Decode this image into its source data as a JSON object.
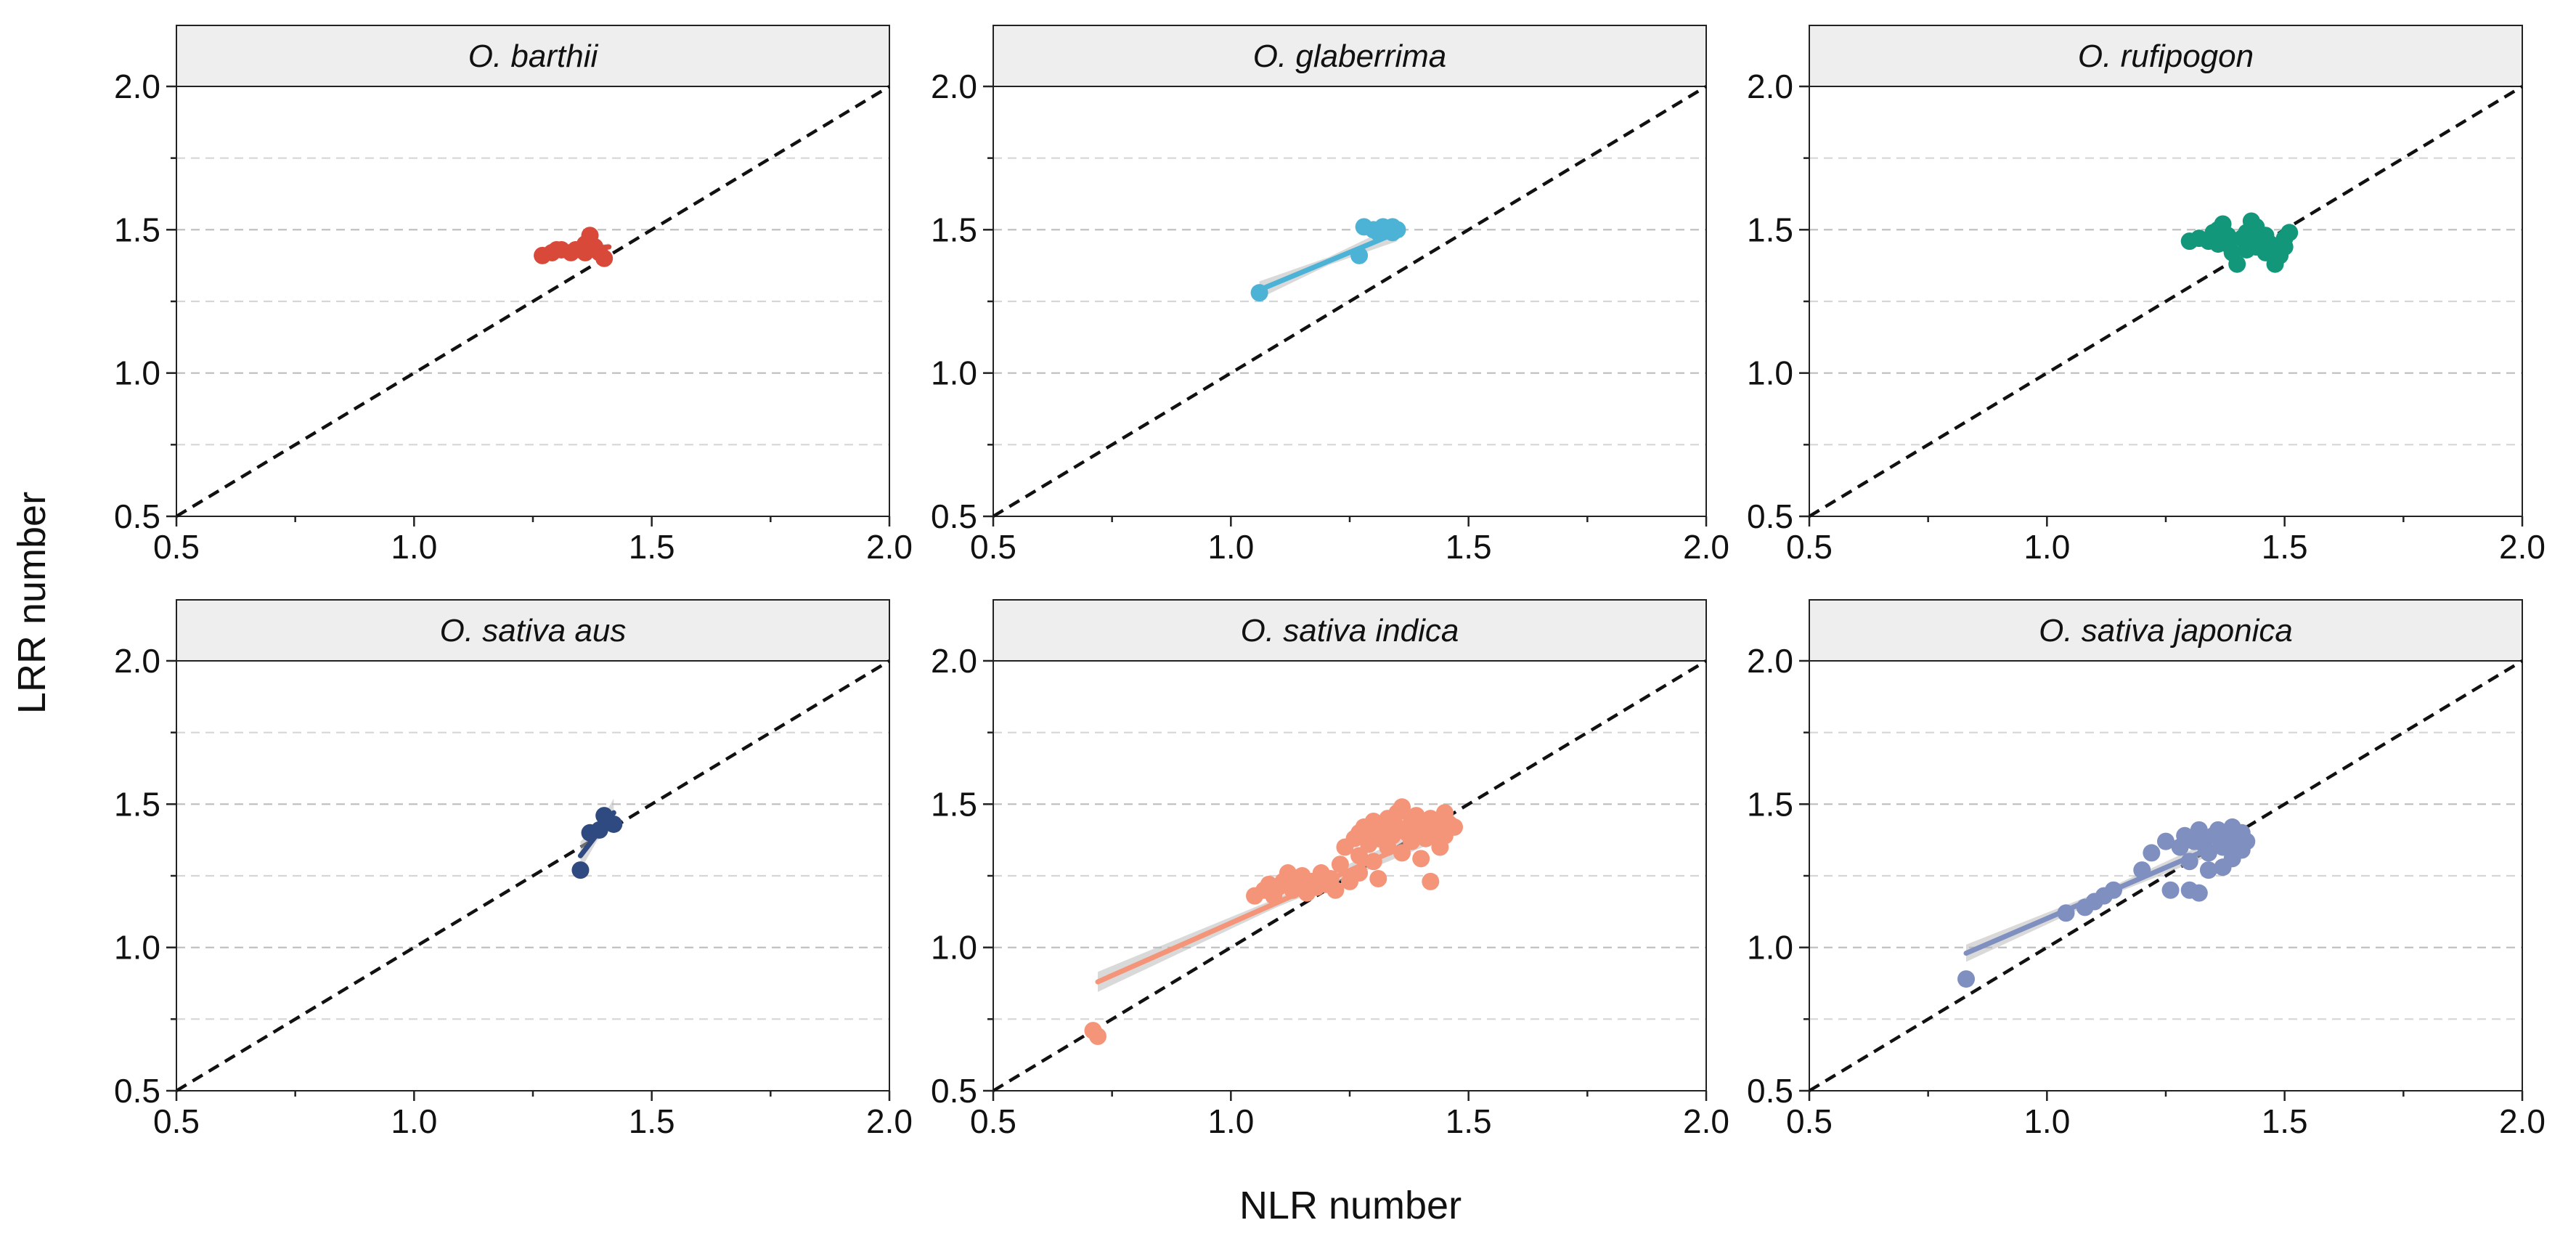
{
  "chart_data": {
    "type": "scatter",
    "figure_title": "",
    "xlabel": "NLR number",
    "ylabel": "LRR number",
    "xlim": [
      0.5,
      2.0
    ],
    "ylim": [
      0.5,
      2.0
    ],
    "x_ticks": [
      "0.5",
      "1.0",
      "1.5",
      "2.0"
    ],
    "y_ticks": [
      "0.5",
      "1.0",
      "1.5",
      "2.0"
    ],
    "grid": "horizontal dashed at 0.75, 1.0, 1.25, 1.5, 1.75",
    "reference_line": "y = x (dashed black)",
    "panels": [
      {
        "title": "O. barthii",
        "color": "#d9493a",
        "points": [
          [
            1.27,
            1.41
          ],
          [
            1.29,
            1.42
          ],
          [
            1.31,
            1.43
          ],
          [
            1.33,
            1.42
          ],
          [
            1.34,
            1.43
          ],
          [
            1.35,
            1.43
          ],
          [
            1.36,
            1.45
          ],
          [
            1.37,
            1.48
          ],
          [
            1.38,
            1.44
          ],
          [
            1.39,
            1.42
          ],
          [
            1.4,
            1.4
          ],
          [
            1.3,
            1.43
          ],
          [
            1.36,
            1.42
          ]
        ],
        "fit": {
          "x": [
            1.27,
            1.41
          ],
          "y": [
            1.415,
            1.44
          ],
          "ci": 0.012
        }
      },
      {
        "title": "O. glaberrima",
        "color": "#4db3d6",
        "points": [
          [
            1.06,
            1.28
          ],
          [
            1.27,
            1.41
          ],
          [
            1.28,
            1.51
          ],
          [
            1.3,
            1.5
          ],
          [
            1.31,
            1.49
          ],
          [
            1.32,
            1.51
          ],
          [
            1.33,
            1.5
          ],
          [
            1.34,
            1.49
          ],
          [
            1.35,
            1.5
          ],
          [
            1.34,
            1.51
          ]
        ],
        "fit": {
          "x": [
            1.06,
            1.35
          ],
          "y": [
            1.29,
            1.49
          ],
          "ci": 0.03
        }
      },
      {
        "title": "O. rufipogon",
        "color": "#12977a",
        "points": [
          [
            1.3,
            1.46
          ],
          [
            1.32,
            1.47
          ],
          [
            1.34,
            1.46
          ],
          [
            1.35,
            1.49
          ],
          [
            1.36,
            1.5
          ],
          [
            1.37,
            1.52
          ],
          [
            1.38,
            1.48
          ],
          [
            1.38,
            1.45
          ],
          [
            1.39,
            1.42
          ],
          [
            1.4,
            1.38
          ],
          [
            1.41,
            1.47
          ],
          [
            1.42,
            1.49
          ],
          [
            1.43,
            1.53
          ],
          [
            1.44,
            1.51
          ],
          [
            1.44,
            1.44
          ],
          [
            1.45,
            1.46
          ],
          [
            1.46,
            1.42
          ],
          [
            1.46,
            1.48
          ],
          [
            1.47,
            1.45
          ],
          [
            1.48,
            1.43
          ],
          [
            1.48,
            1.38
          ],
          [
            1.49,
            1.41
          ],
          [
            1.5,
            1.44
          ],
          [
            1.5,
            1.47
          ],
          [
            1.51,
            1.49
          ],
          [
            1.36,
            1.45
          ],
          [
            1.42,
            1.43
          ]
        ],
        "fit": {
          "x": [
            1.3,
            1.51
          ],
          "y": [
            1.47,
            1.445
          ],
          "ci": 0.012
        }
      },
      {
        "title": "O. sativa aus",
        "color": "#2f4a80",
        "points": [
          [
            1.35,
            1.27
          ],
          [
            1.37,
            1.4
          ],
          [
            1.39,
            1.41
          ],
          [
            1.4,
            1.46
          ],
          [
            1.42,
            1.43
          ]
        ],
        "fit": {
          "x": [
            1.35,
            1.42
          ],
          "y": [
            1.32,
            1.47
          ],
          "ci": 0.05
        }
      },
      {
        "title": "O. sativa indica",
        "color": "#f4957a",
        "points": [
          [
            0.71,
            0.71
          ],
          [
            0.72,
            0.69
          ],
          [
            1.05,
            1.18
          ],
          [
            1.07,
            1.2
          ],
          [
            1.08,
            1.22
          ],
          [
            1.09,
            1.18
          ],
          [
            1.1,
            1.21
          ],
          [
            1.11,
            1.23
          ],
          [
            1.12,
            1.26
          ],
          [
            1.13,
            1.2
          ],
          [
            1.14,
            1.22
          ],
          [
            1.15,
            1.25
          ],
          [
            1.16,
            1.19
          ],
          [
            1.17,
            1.23
          ],
          [
            1.18,
            1.21
          ],
          [
            1.19,
            1.26
          ],
          [
            1.2,
            1.22
          ],
          [
            1.21,
            1.24
          ],
          [
            1.22,
            1.2
          ],
          [
            1.23,
            1.29
          ],
          [
            1.24,
            1.35
          ],
          [
            1.25,
            1.23
          ],
          [
            1.26,
            1.38
          ],
          [
            1.27,
            1.4
          ],
          [
            1.27,
            1.32
          ],
          [
            1.28,
            1.42
          ],
          [
            1.29,
            1.36
          ],
          [
            1.3,
            1.44
          ],
          [
            1.3,
            1.3
          ],
          [
            1.31,
            1.38
          ],
          [
            1.32,
            1.41
          ],
          [
            1.33,
            1.45
          ],
          [
            1.33,
            1.35
          ],
          [
            1.34,
            1.39
          ],
          [
            1.35,
            1.47
          ],
          [
            1.35,
            1.42
          ],
          [
            1.36,
            1.49
          ],
          [
            1.36,
            1.33
          ],
          [
            1.37,
            1.4
          ],
          [
            1.38,
            1.44
          ],
          [
            1.38,
            1.37
          ],
          [
            1.39,
            1.46
          ],
          [
            1.4,
            1.42
          ],
          [
            1.4,
            1.31
          ],
          [
            1.41,
            1.38
          ],
          [
            1.42,
            1.45
          ],
          [
            1.43,
            1.4
          ],
          [
            1.44,
            1.35
          ],
          [
            1.45,
            1.47
          ],
          [
            1.45,
            1.39
          ],
          [
            1.46,
            1.43
          ],
          [
            1.47,
            1.42
          ],
          [
            1.42,
            1.23
          ],
          [
            1.31,
            1.24
          ],
          [
            1.27,
            1.26
          ],
          [
            1.2,
            1.23
          ],
          [
            1.35,
            1.41
          ],
          [
            1.43,
            1.44
          ],
          [
            1.29,
            1.4
          ]
        ],
        "fit": {
          "x": [
            0.72,
            1.47
          ],
          "y": [
            0.88,
            1.43
          ],
          "ci": 0.035
        }
      },
      {
        "title": "O. sativa japonica",
        "color": "#7f8fbf",
        "points": [
          [
            0.83,
            0.89
          ],
          [
            1.04,
            1.12
          ],
          [
            1.08,
            1.14
          ],
          [
            1.1,
            1.16
          ],
          [
            1.12,
            1.18
          ],
          [
            1.14,
            1.2
          ],
          [
            1.2,
            1.27
          ],
          [
            1.22,
            1.33
          ],
          [
            1.25,
            1.37
          ],
          [
            1.26,
            1.2
          ],
          [
            1.28,
            1.35
          ],
          [
            1.29,
            1.39
          ],
          [
            1.3,
            1.2
          ],
          [
            1.31,
            1.37
          ],
          [
            1.32,
            1.41
          ],
          [
            1.32,
            1.19
          ],
          [
            1.33,
            1.36
          ],
          [
            1.34,
            1.33
          ],
          [
            1.35,
            1.39
          ],
          [
            1.36,
            1.41
          ],
          [
            1.37,
            1.35
          ],
          [
            1.37,
            1.28
          ],
          [
            1.38,
            1.38
          ],
          [
            1.39,
            1.42
          ],
          [
            1.39,
            1.31
          ],
          [
            1.4,
            1.36
          ],
          [
            1.41,
            1.34
          ],
          [
            1.41,
            1.4
          ],
          [
            1.42,
            1.37
          ],
          [
            1.3,
            1.3
          ],
          [
            1.34,
            1.27
          ]
        ],
        "fit": {
          "x": [
            0.83,
            1.42
          ],
          "y": [
            0.98,
            1.4
          ],
          "ci": 0.03
        }
      }
    ]
  }
}
